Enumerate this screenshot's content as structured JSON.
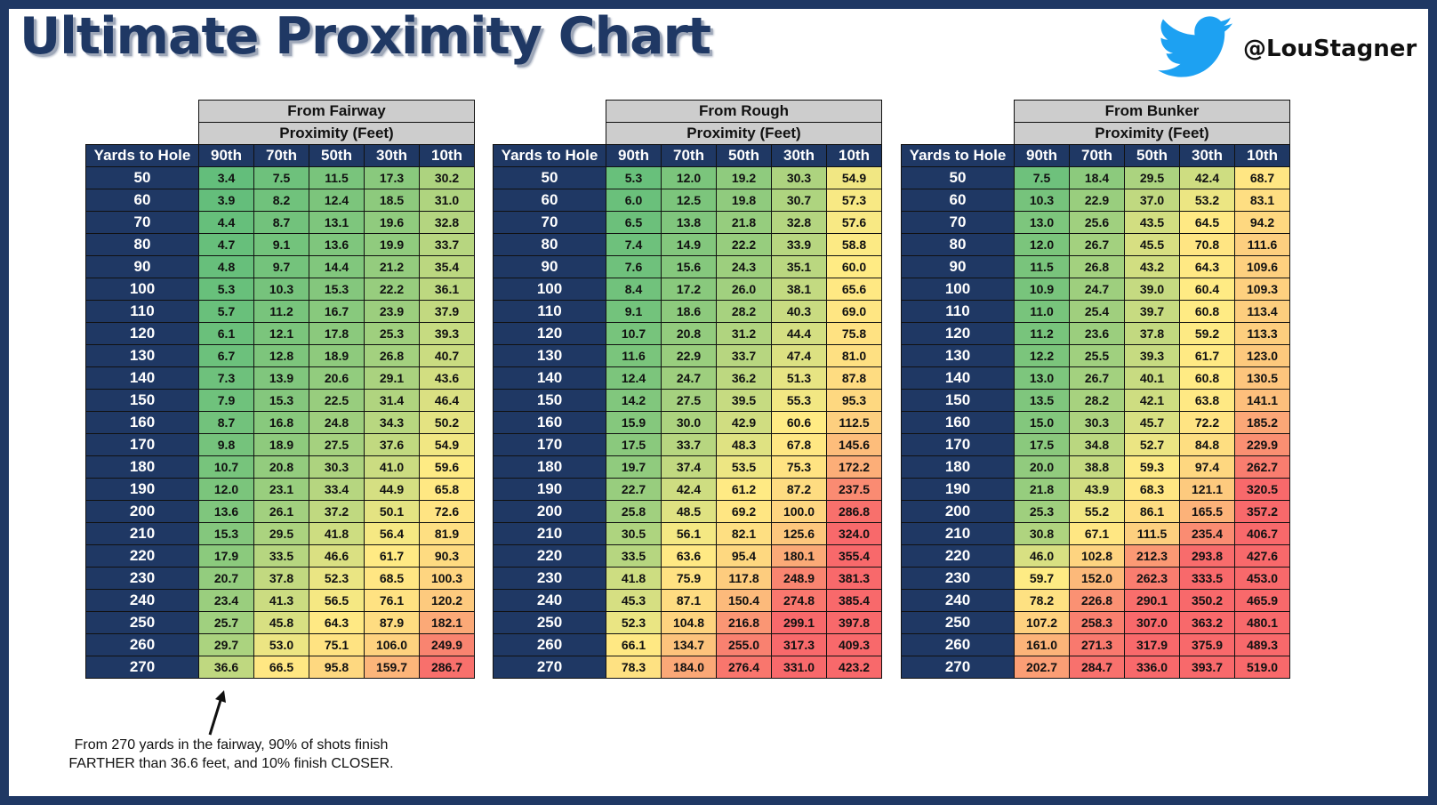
{
  "title": "Ultimate Proximity Chart",
  "brand": {
    "handle": "@LouStagner",
    "icon": "twitter-bird-icon",
    "icon_color": "#1da1f2"
  },
  "colors": {
    "navy": "#1f3864",
    "header_gray": "#cdcdcd",
    "scale_low": "#63be7b",
    "scale_mid": "#ffeb84",
    "scale_high": "#f8696b"
  },
  "chart_data": {
    "type": "table",
    "row_header": "Yards to Hole",
    "subheader": "Proximity  (Feet)",
    "columns": [
      "90th",
      "70th",
      "50th",
      "30th",
      "10th"
    ],
    "yards": [
      50,
      60,
      70,
      80,
      90,
      100,
      110,
      120,
      130,
      140,
      150,
      160,
      170,
      180,
      190,
      200,
      210,
      220,
      230,
      240,
      250,
      260,
      270
    ],
    "color_scale": {
      "min": 3.4,
      "mid": 60,
      "max": 300
    },
    "tables": [
      {
        "title": "From Fairway",
        "rows": [
          [
            "3.4",
            "7.5",
            "11.5",
            "17.3",
            "30.2"
          ],
          [
            "3.9",
            "8.2",
            "12.4",
            "18.5",
            "31.0"
          ],
          [
            "4.4",
            "8.7",
            "13.1",
            "19.6",
            "32.8"
          ],
          [
            "4.7",
            "9.1",
            "13.6",
            "19.9",
            "33.7"
          ],
          [
            "4.8",
            "9.7",
            "14.4",
            "21.2",
            "35.4"
          ],
          [
            "5.3",
            "10.3",
            "15.3",
            "22.2",
            "36.1"
          ],
          [
            "5.7",
            "11.2",
            "16.7",
            "23.9",
            "37.9"
          ],
          [
            "6.1",
            "12.1",
            "17.8",
            "25.3",
            "39.3"
          ],
          [
            "6.7",
            "12.8",
            "18.9",
            "26.8",
            "40.7"
          ],
          [
            "7.3",
            "13.9",
            "20.6",
            "29.1",
            "43.6"
          ],
          [
            "7.9",
            "15.3",
            "22.5",
            "31.4",
            "46.4"
          ],
          [
            "8.7",
            "16.8",
            "24.8",
            "34.3",
            "50.2"
          ],
          [
            "9.8",
            "18.9",
            "27.5",
            "37.6",
            "54.9"
          ],
          [
            "10.7",
            "20.8",
            "30.3",
            "41.0",
            "59.6"
          ],
          [
            "12.0",
            "23.1",
            "33.4",
            "44.9",
            "65.8"
          ],
          [
            "13.6",
            "26.1",
            "37.2",
            "50.1",
            "72.6"
          ],
          [
            "15.3",
            "29.5",
            "41.8",
            "56.4",
            "81.9"
          ],
          [
            "17.9",
            "33.5",
            "46.6",
            "61.7",
            "90.3"
          ],
          [
            "20.7",
            "37.8",
            "52.3",
            "68.5",
            "100.3"
          ],
          [
            "23.4",
            "41.3",
            "56.5",
            "76.1",
            "120.2"
          ],
          [
            "25.7",
            "45.8",
            "64.3",
            "87.9",
            "182.1"
          ],
          [
            "29.7",
            "53.0",
            "75.1",
            "106.0",
            "249.9"
          ],
          [
            "36.6",
            "66.5",
            "95.8",
            "159.7",
            "286.7"
          ]
        ]
      },
      {
        "title": "From Rough",
        "rows": [
          [
            "5.3",
            "12.0",
            "19.2",
            "30.3",
            "54.9"
          ],
          [
            "6.0",
            "12.5",
            "19.8",
            "30.7",
            "57.3"
          ],
          [
            "6.5",
            "13.8",
            "21.8",
            "32.8",
            "57.6"
          ],
          [
            "7.4",
            "14.9",
            "22.2",
            "33.9",
            "58.8"
          ],
          [
            "7.6",
            "15.6",
            "24.3",
            "35.1",
            "60.0"
          ],
          [
            "8.4",
            "17.2",
            "26.0",
            "38.1",
            "65.6"
          ],
          [
            "9.1",
            "18.6",
            "28.2",
            "40.3",
            "69.0"
          ],
          [
            "10.7",
            "20.8",
            "31.2",
            "44.4",
            "75.8"
          ],
          [
            "11.6",
            "22.9",
            "33.7",
            "47.4",
            "81.0"
          ],
          [
            "12.4",
            "24.7",
            "36.2",
            "51.3",
            "87.8"
          ],
          [
            "14.2",
            "27.5",
            "39.5",
            "55.3",
            "95.3"
          ],
          [
            "15.9",
            "30.0",
            "42.9",
            "60.6",
            "112.5"
          ],
          [
            "17.5",
            "33.7",
            "48.3",
            "67.8",
            "145.6"
          ],
          [
            "19.7",
            "37.4",
            "53.5",
            "75.3",
            "172.2"
          ],
          [
            "22.7",
            "42.4",
            "61.2",
            "87.2",
            "237.5"
          ],
          [
            "25.8",
            "48.5",
            "69.2",
            "100.0",
            "286.8"
          ],
          [
            "30.5",
            "56.1",
            "82.1",
            "125.6",
            "324.0"
          ],
          [
            "33.5",
            "63.6",
            "95.4",
            "180.1",
            "355.4"
          ],
          [
            "41.8",
            "75.9",
            "117.8",
            "248.9",
            "381.3"
          ],
          [
            "45.3",
            "87.1",
            "150.4",
            "274.8",
            "385.4"
          ],
          [
            "52.3",
            "104.8",
            "216.8",
            "299.1",
            "397.8"
          ],
          [
            "66.1",
            "134.7",
            "255.0",
            "317.3",
            "409.3"
          ],
          [
            "78.3",
            "184.0",
            "276.4",
            "331.0",
            "423.2"
          ]
        ]
      },
      {
        "title": "From Bunker",
        "rows": [
          [
            "7.5",
            "18.4",
            "29.5",
            "42.4",
            "68.7"
          ],
          [
            "10.3",
            "22.9",
            "37.0",
            "53.2",
            "83.1"
          ],
          [
            "13.0",
            "25.6",
            "43.5",
            "64.5",
            "94.2"
          ],
          [
            "12.0",
            "26.7",
            "45.5",
            "70.8",
            "111.6"
          ],
          [
            "11.5",
            "26.8",
            "43.2",
            "64.3",
            "109.6"
          ],
          [
            "10.9",
            "24.7",
            "39.0",
            "60.4",
            "109.3"
          ],
          [
            "11.0",
            "25.4",
            "39.7",
            "60.8",
            "113.4"
          ],
          [
            "11.2",
            "23.6",
            "37.8",
            "59.2",
            "113.3"
          ],
          [
            "12.2",
            "25.5",
            "39.3",
            "61.7",
            "123.0"
          ],
          [
            "13.0",
            "26.7",
            "40.1",
            "60.8",
            "130.5"
          ],
          [
            "13.5",
            "28.2",
            "42.1",
            "63.8",
            "141.1"
          ],
          [
            "15.0",
            "30.3",
            "45.7",
            "72.2",
            "185.2"
          ],
          [
            "17.5",
            "34.8",
            "52.7",
            "84.8",
            "229.9"
          ],
          [
            "20.0",
            "38.8",
            "59.3",
            "97.4",
            "262.7"
          ],
          [
            "21.8",
            "43.9",
            "68.3",
            "121.1",
            "320.5"
          ],
          [
            "25.3",
            "55.2",
            "86.1",
            "165.5",
            "357.2"
          ],
          [
            "30.8",
            "67.1",
            "111.5",
            "235.4",
            "406.7"
          ],
          [
            "46.0",
            "102.8",
            "212.3",
            "293.8",
            "427.6"
          ],
          [
            "59.7",
            "152.0",
            "262.3",
            "333.5",
            "453.0"
          ],
          [
            "78.2",
            "226.8",
            "290.1",
            "350.2",
            "465.9"
          ],
          [
            "107.2",
            "258.3",
            "307.0",
            "363.2",
            "480.1"
          ],
          [
            "161.0",
            "271.3",
            "317.9",
            "375.9",
            "489.3"
          ],
          [
            "202.7",
            "284.7",
            "336.0",
            "393.7",
            "519.0"
          ]
        ]
      }
    ],
    "annotation": "From 270 yards in the fairway, 90% of shots finish FARTHER than 36.6 feet, and 10% finish CLOSER."
  }
}
